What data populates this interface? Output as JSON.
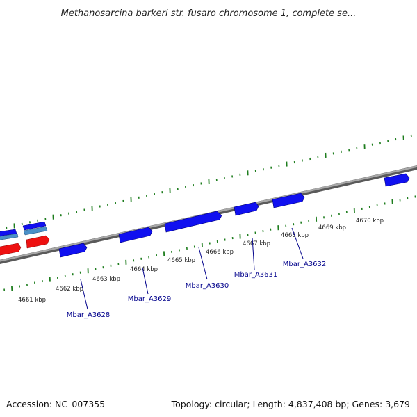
{
  "header": {
    "title": "Methanosarcina barkeri str. fusaro chromosome 1, complete se..."
  },
  "footer": {
    "accession": "Accession: NC_007355",
    "summary": "Topology: circular; Length: 4,837,408 bp; Genes: 3,679"
  },
  "colors": {
    "background": "#ffffff",
    "backbone": "#8c8c8c",
    "tick": "#1e7d1e",
    "gene_forward": "#1010f0",
    "gene_reverse": "#ee1111",
    "gene_light": "#4a90c8",
    "label": "#00008b"
  },
  "ruler": {
    "ticks": [
      {
        "label": "4661 kbp"
      },
      {
        "label": "4662 kbp"
      },
      {
        "label": "4663 kbp"
      },
      {
        "label": "4664 kbp"
      },
      {
        "label": "4665 kbp"
      },
      {
        "label": "4666 kbp"
      },
      {
        "label": "4667 kbp"
      },
      {
        "label": "4668 kbp"
      },
      {
        "label": "4669 kbp"
      },
      {
        "label": "4670 kbp"
      }
    ]
  },
  "genes": [
    {
      "name": "Mbar_A3628",
      "strand": "forward"
    },
    {
      "name": "Mbar_A3629",
      "strand": "forward"
    },
    {
      "name": "Mbar_A3630",
      "strand": "forward"
    },
    {
      "name": "Mbar_A3631",
      "strand": "forward"
    },
    {
      "name": "Mbar_A3632",
      "strand": "forward"
    }
  ]
}
